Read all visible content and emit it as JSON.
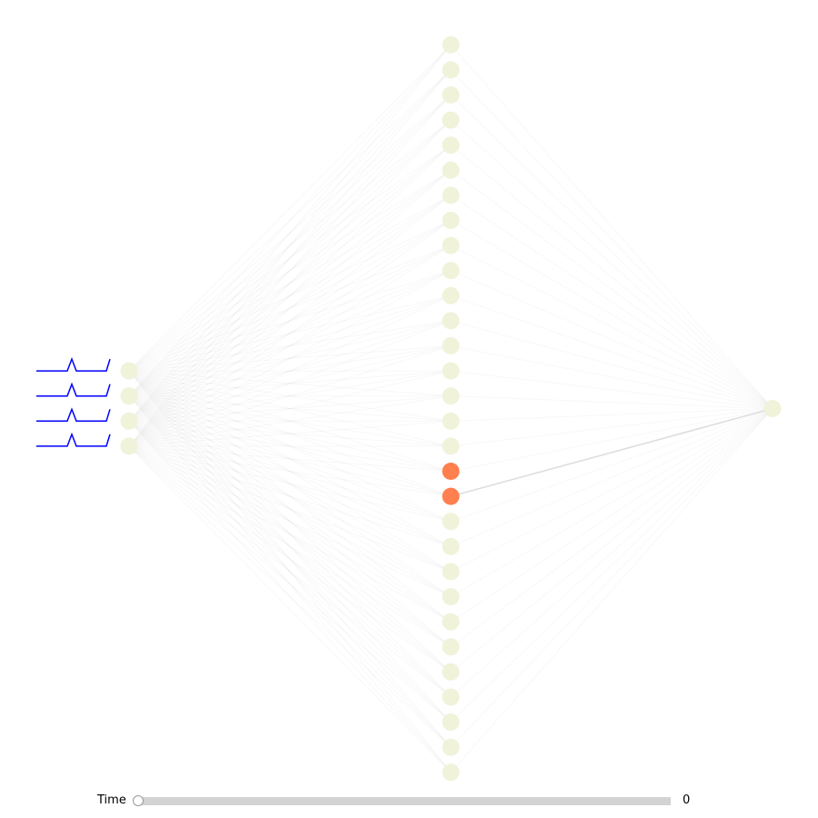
{
  "network": {
    "layers": [
      4,
      30,
      1
    ],
    "neuron_color": "#f0f3d9",
    "active_color": "#ff7f4f",
    "active_hidden_neurons": [
      17,
      18
    ],
    "highlighted_edge": {
      "from_layer": 1,
      "from_index": 18,
      "to_layer": 2,
      "to_index": 0
    },
    "edge_color": "#c8c8c8",
    "input_signal_color": "#0000ff"
  },
  "slider": {
    "label": "Time",
    "value": "0",
    "min": 0,
    "max": 1,
    "current": 0
  }
}
